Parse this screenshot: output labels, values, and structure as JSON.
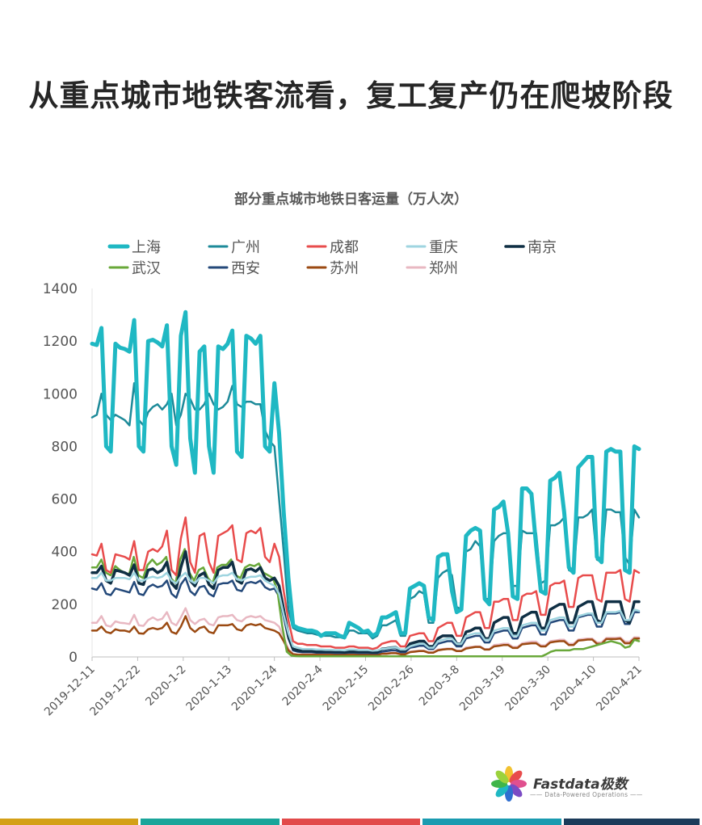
{
  "headline": "从重点城市地铁客流看，复工复产仍在爬坡阶段",
  "logo": {
    "name": "Fastdata极数",
    "tagline": "—— Data-Powered Operations ——"
  },
  "footer_colors": [
    "#d4a017",
    "#1aa59a",
    "#e24a4a",
    "#1a9bb0",
    "#1b3b5a"
  ],
  "chart_data": {
    "type": "line",
    "title": "部分重点城市地铁日客运量（万人次）",
    "x_tick_labels": [
      "2019-12-11",
      "2019-12-22",
      "2020-1-2",
      "2020-1-13",
      "2020-1-24",
      "2020-2-4",
      "2020-2-15",
      "2020-2-26",
      "2020-3-8",
      "2020-3-19",
      "2020-3-30",
      "2020-4-10",
      "2020-4-21"
    ],
    "x_start": "2019-12-11",
    "x_end": "2020-4-21",
    "y_ticks": [
      0,
      200,
      400,
      600,
      800,
      1000,
      1200,
      1400
    ],
    "ylim": [
      0,
      1400
    ],
    "legend_position": "top",
    "series": [
      {
        "name": "上海",
        "color": "#1fb8c3",
        "width": 5,
        "values": [
          1190,
          1185,
          1250,
          800,
          780,
          1190,
          1175,
          1170,
          1160,
          1280,
          800,
          780,
          1200,
          1205,
          1195,
          1180,
          1260,
          800,
          730,
          1220,
          1310,
          830,
          700,
          1160,
          1180,
          800,
          700,
          1180,
          1170,
          1190,
          1240,
          780,
          760,
          1220,
          1210,
          1190,
          1220,
          800,
          780,
          1040,
          850,
          550,
          300,
          120,
          110,
          105,
          100,
          100,
          95,
          80,
          90,
          90,
          90,
          80,
          75,
          130,
          120,
          110,
          95,
          100,
          80,
          90,
          150,
          150,
          160,
          170,
          90,
          90,
          260,
          270,
          280,
          270,
          150,
          140,
          380,
          390,
          390,
          250,
          170,
          180,
          460,
          480,
          490,
          480,
          220,
          200,
          560,
          570,
          590,
          470,
          230,
          220,
          640,
          640,
          620,
          420,
          250,
          240,
          670,
          680,
          700,
          550,
          340,
          320,
          720,
          740,
          760,
          760,
          380,
          360,
          780,
          790,
          780,
          780,
          330,
          320,
          800,
          790
        ]
      },
      {
        "name": "广州",
        "color": "#1d8a99",
        "width": 2.5,
        "values": [
          910,
          920,
          1000,
          920,
          900,
          920,
          910,
          900,
          880,
          1040,
          900,
          880,
          930,
          950,
          960,
          940,
          960,
          1000,
          880,
          920,
          1000,
          980,
          940,
          940,
          960,
          1000,
          960,
          940,
          950,
          970,
          1030,
          960,
          950,
          970,
          970,
          960,
          960,
          860,
          820,
          800,
          600,
          400,
          180,
          110,
          100,
          95,
          90,
          90,
          85,
          80,
          80,
          80,
          75,
          75,
          70,
          100,
          100,
          90,
          90,
          90,
          70,
          80,
          120,
          120,
          130,
          140,
          80,
          80,
          220,
          230,
          250,
          240,
          130,
          130,
          300,
          320,
          330,
          310,
          190,
          180,
          400,
          410,
          440,
          420,
          220,
          220,
          440,
          460,
          470,
          470,
          270,
          270,
          480,
          470,
          470,
          470,
          280,
          290,
          500,
          500,
          510,
          530,
          330,
          320,
          530,
          530,
          540,
          560,
          370,
          360,
          560,
          560,
          550,
          550,
          380,
          350,
          560,
          530
        ]
      },
      {
        "name": "成都",
        "color": "#e84c4c",
        "width": 2.5,
        "values": [
          390,
          385,
          430,
          330,
          320,
          390,
          385,
          380,
          370,
          440,
          330,
          330,
          400,
          410,
          400,
          420,
          480,
          330,
          310,
          450,
          530,
          360,
          320,
          460,
          470,
          360,
          320,
          460,
          470,
          480,
          500,
          370,
          360,
          470,
          480,
          470,
          490,
          380,
          360,
          430,
          380,
          250,
          140,
          60,
          50,
          50,
          45,
          45,
          45,
          40,
          40,
          40,
          35,
          35,
          35,
          40,
          40,
          35,
          35,
          35,
          30,
          35,
          50,
          55,
          60,
          60,
          40,
          40,
          80,
          85,
          90,
          90,
          60,
          60,
          110,
          120,
          130,
          130,
          80,
          80,
          150,
          160,
          170,
          170,
          110,
          110,
          210,
          210,
          220,
          220,
          140,
          140,
          230,
          240,
          240,
          250,
          160,
          160,
          270,
          280,
          280,
          290,
          190,
          190,
          300,
          310,
          310,
          310,
          220,
          210,
          320,
          320,
          320,
          330,
          220,
          210,
          330,
          320
        ]
      },
      {
        "name": "重庆",
        "color": "#9fd5e0",
        "width": 2.5,
        "values": [
          300,
          300,
          320,
          290,
          290,
          300,
          300,
          300,
          295,
          320,
          290,
          290,
          300,
          305,
          300,
          305,
          320,
          290,
          280,
          305,
          320,
          290,
          280,
          300,
          300,
          290,
          280,
          305,
          310,
          310,
          320,
          295,
          290,
          300,
          305,
          305,
          310,
          290,
          280,
          270,
          240,
          160,
          90,
          40,
          35,
          30,
          30,
          30,
          28,
          28,
          27,
          27,
          26,
          26,
          25,
          28,
          28,
          26,
          26,
          26,
          24,
          25,
          30,
          32,
          35,
          36,
          28,
          28,
          40,
          45,
          50,
          50,
          35,
          35,
          60,
          65,
          70,
          70,
          50,
          50,
          80,
          85,
          90,
          90,
          65,
          65,
          100,
          105,
          110,
          110,
          80,
          80,
          120,
          125,
          130,
          130,
          100,
          100,
          140,
          145,
          150,
          150,
          115,
          115,
          155,
          160,
          165,
          165,
          130,
          130,
          170,
          170,
          170,
          175,
          140,
          140,
          180,
          175
        ]
      },
      {
        "name": "南京",
        "color": "#0f2f44",
        "width": 3.5,
        "values": [
          320,
          320,
          345,
          290,
          280,
          330,
          325,
          320,
          310,
          350,
          280,
          275,
          330,
          335,
          320,
          330,
          360,
          280,
          260,
          340,
          400,
          290,
          270,
          310,
          320,
          275,
          260,
          330,
          340,
          340,
          360,
          290,
          280,
          330,
          335,
          325,
          340,
          300,
          290,
          300,
          270,
          180,
          80,
          30,
          25,
          22,
          22,
          22,
          20,
          20,
          20,
          20,
          20,
          20,
          18,
          20,
          20,
          20,
          20,
          20,
          18,
          18,
          30,
          32,
          35,
          36,
          25,
          25,
          50,
          55,
          60,
          60,
          40,
          40,
          70,
          80,
          80,
          80,
          50,
          50,
          95,
          100,
          110,
          110,
          70,
          70,
          130,
          140,
          150,
          150,
          90,
          90,
          150,
          160,
          170,
          170,
          110,
          110,
          180,
          190,
          200,
          200,
          130,
          130,
          190,
          200,
          210,
          210,
          140,
          130,
          210,
          210,
          210,
          210,
          140,
          130,
          210,
          210
        ]
      },
      {
        "name": "武汉",
        "color": "#69a83a",
        "width": 2.5,
        "values": [
          340,
          340,
          370,
          320,
          310,
          345,
          330,
          320,
          315,
          380,
          310,
          300,
          350,
          370,
          350,
          360,
          380,
          300,
          280,
          370,
          410,
          320,
          290,
          330,
          340,
          300,
          280,
          340,
          350,
          350,
          370,
          310,
          300,
          340,
          350,
          345,
          355,
          320,
          310,
          300,
          250,
          120,
          20,
          5,
          3,
          2,
          2,
          2,
          2,
          2,
          2,
          2,
          2,
          2,
          2,
          2,
          2,
          2,
          2,
          2,
          2,
          2,
          2,
          2,
          2,
          2,
          2,
          2,
          2,
          2,
          2,
          2,
          2,
          2,
          2,
          2,
          2,
          2,
          2,
          2,
          2,
          2,
          2,
          2,
          2,
          2,
          2,
          2,
          2,
          2,
          2,
          2,
          2,
          2,
          2,
          2,
          2,
          2,
          10,
          20,
          25,
          25,
          25,
          25,
          30,
          30,
          30,
          35,
          40,
          45,
          50,
          55,
          60,
          55,
          50,
          35,
          40,
          65,
          60
        ]
      },
      {
        "name": "西安",
        "color": "#24497a",
        "width": 2.5,
        "values": [
          260,
          255,
          280,
          240,
          235,
          260,
          255,
          250,
          245,
          285,
          240,
          235,
          265,
          275,
          265,
          270,
          290,
          240,
          225,
          275,
          300,
          250,
          235,
          265,
          270,
          240,
          230,
          275,
          280,
          280,
          290,
          255,
          250,
          280,
          285,
          280,
          290,
          265,
          255,
          260,
          230,
          150,
          70,
          25,
          20,
          18,
          18,
          18,
          16,
          16,
          16,
          16,
          15,
          15,
          15,
          16,
          16,
          15,
          15,
          15,
          14,
          14,
          20,
          22,
          25,
          25,
          18,
          18,
          35,
          38,
          42,
          42,
          30,
          30,
          50,
          55,
          60,
          60,
          40,
          40,
          70,
          75,
          80,
          80,
          55,
          55,
          90,
          95,
          100,
          100,
          70,
          70,
          110,
          115,
          120,
          120,
          85,
          85,
          130,
          135,
          140,
          140,
          100,
          100,
          150,
          155,
          160,
          160,
          115,
          115,
          165,
          165,
          165,
          170,
          125,
          125,
          170,
          170
        ]
      },
      {
        "name": "苏州",
        "color": "#9b4a12",
        "width": 2.5,
        "values": [
          100,
          100,
          115,
          95,
          90,
          105,
          100,
          100,
          95,
          115,
          90,
          88,
          105,
          110,
          105,
          110,
          130,
          95,
          88,
          115,
          155,
          110,
          95,
          110,
          115,
          95,
          90,
          120,
          120,
          120,
          125,
          105,
          100,
          120,
          125,
          120,
          125,
          110,
          105,
          100,
          90,
          60,
          25,
          10,
          8,
          8,
          8,
          8,
          8,
          8,
          8,
          8,
          8,
          8,
          8,
          8,
          8,
          8,
          8,
          8,
          8,
          8,
          12,
          12,
          14,
          14,
          10,
          10,
          18,
          20,
          22,
          22,
          16,
          16,
          25,
          28,
          30,
          30,
          22,
          22,
          32,
          35,
          38,
          38,
          28,
          28,
          40,
          42,
          45,
          45,
          34,
          34,
          48,
          50,
          52,
          52,
          40,
          40,
          55,
          58,
          60,
          60,
          45,
          45,
          62,
          64,
          66,
          66,
          50,
          50,
          68,
          68,
          68,
          70,
          52,
          52,
          70,
          70
        ]
      },
      {
        "name": "郑州",
        "color": "#e8b8c2",
        "width": 2.5,
        "values": [
          130,
          130,
          155,
          120,
          115,
          135,
          130,
          128,
          125,
          160,
          120,
          118,
          140,
          150,
          140,
          145,
          170,
          130,
          120,
          150,
          185,
          140,
          125,
          140,
          145,
          125,
          120,
          150,
          155,
          155,
          160,
          140,
          135,
          150,
          155,
          150,
          155,
          140,
          135,
          130,
          115,
          75,
          30,
          12,
          10,
          10,
          10,
          10,
          10,
          10,
          10,
          10,
          10,
          10,
          10,
          10,
          10,
          10,
          10,
          10,
          10,
          10,
          14,
          15,
          16,
          16,
          12,
          12,
          20,
          22,
          24,
          24,
          18,
          18,
          28,
          30,
          32,
          32,
          24,
          24,
          36,
          38,
          40,
          40,
          30,
          30,
          45,
          47,
          50,
          50,
          38,
          38,
          52,
          55,
          58,
          58,
          44,
          44,
          60,
          62,
          65,
          65,
          50,
          50,
          66,
          68,
          70,
          70,
          55,
          55,
          72,
          72,
          72,
          74,
          58,
          58,
          75,
          74
        ]
      }
    ]
  }
}
